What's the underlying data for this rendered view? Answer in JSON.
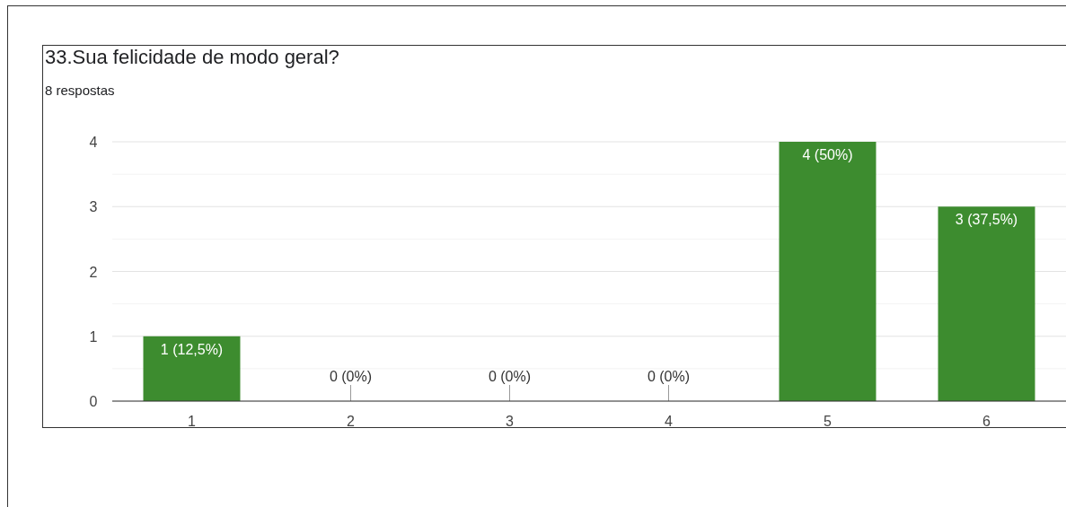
{
  "chart_data": {
    "type": "bar",
    "title": "33.Sua felicidade de modo geral?",
    "subtitle": "8 respostas",
    "categories": [
      "1",
      "2",
      "3",
      "4",
      "5",
      "6"
    ],
    "values": [
      1,
      0,
      0,
      0,
      4,
      3
    ],
    "value_labels": [
      "1 (12,5%)",
      "0 (0%)",
      "0 (0%)",
      "0 (0%)",
      "4 (50%)",
      "3 (37,5%)"
    ],
    "color": "#3d8c2f",
    "ylim": [
      0,
      4
    ],
    "yticks": [
      0,
      {
        "value": 0.5,
        "label": null
      },
      1,
      {
        "value": 1.5,
        "label": null
      },
      2,
      {
        "value": 2.5,
        "label": null
      },
      3,
      {
        "value": 3.5,
        "label": null
      },
      4
    ],
    "grid": "y"
  }
}
